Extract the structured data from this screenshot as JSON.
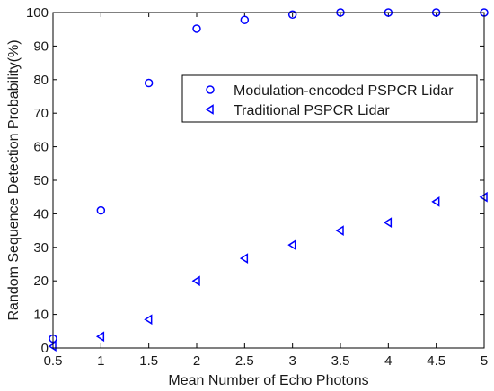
{
  "chart_data": {
    "type": "scatter",
    "xlabel": "Mean Number of Echo Photons",
    "ylabel": "Random Sequence Detection Probability(%)",
    "xlim": [
      0.5,
      5
    ],
    "ylim": [
      0,
      100
    ],
    "xticks": [
      0.5,
      1,
      1.5,
      2,
      2.5,
      3,
      3.5,
      4,
      4.5,
      5
    ],
    "xtick_labels": [
      "0.5",
      "1",
      "1.5",
      "2",
      "2.5",
      "3",
      "3.5",
      "4",
      "4.5",
      "5"
    ],
    "yticks": [
      0,
      10,
      20,
      30,
      40,
      50,
      60,
      70,
      80,
      90,
      100
    ],
    "ytick_labels": [
      "0",
      "10",
      "20",
      "30",
      "40",
      "50",
      "60",
      "70",
      "80",
      "90",
      "100"
    ],
    "grid": false,
    "legend_position": "upper-right",
    "series": [
      {
        "name": "Modulation-encoded PSPCR Lidar",
        "marker": "circle",
        "color": "#0000ff",
        "x": [
          0.5,
          1,
          1.5,
          2,
          2.5,
          3,
          3.5,
          4,
          4.5,
          5
        ],
        "y": [
          2.8,
          41,
          79,
          95.2,
          97.8,
          99.4,
          100,
          100,
          100,
          100
        ]
      },
      {
        "name": "Traditional PSPCR Lidar",
        "marker": "triangle-left",
        "color": "#0000ff",
        "x": [
          0.5,
          1,
          1.5,
          2,
          2.5,
          3,
          3.5,
          4,
          4.5,
          5
        ],
        "y": [
          0.5,
          3.4,
          8.5,
          20,
          26.7,
          30.7,
          35,
          37.4,
          43.6,
          45
        ]
      }
    ]
  }
}
